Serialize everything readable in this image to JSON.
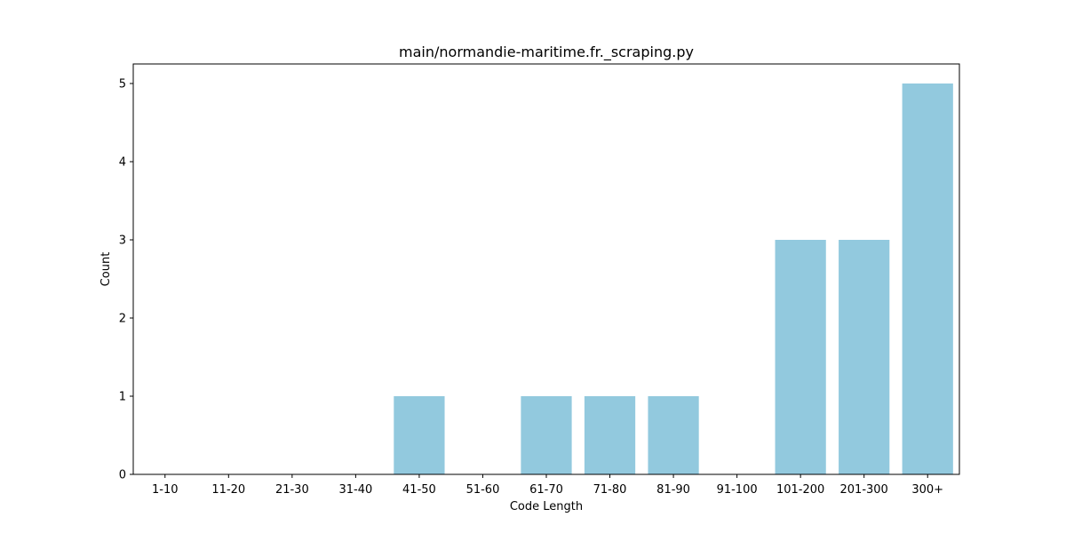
{
  "chart_data": {
    "type": "bar",
    "title": "main/normandie-maritime.fr._scraping.py",
    "xlabel": "Code Length",
    "ylabel": "Count",
    "categories": [
      "1-10",
      "11-20",
      "21-30",
      "31-40",
      "41-50",
      "51-60",
      "61-70",
      "71-80",
      "81-90",
      "91-100",
      "101-200",
      "201-300",
      "300+"
    ],
    "values": [
      0,
      0,
      0,
      0,
      1,
      0,
      1,
      1,
      1,
      0,
      3,
      3,
      5
    ],
    "ylim": [
      0,
      5.25
    ],
    "yticks": [
      0,
      1,
      2,
      3,
      4,
      5
    ],
    "grid": false,
    "bar_color": "#92c9de"
  }
}
